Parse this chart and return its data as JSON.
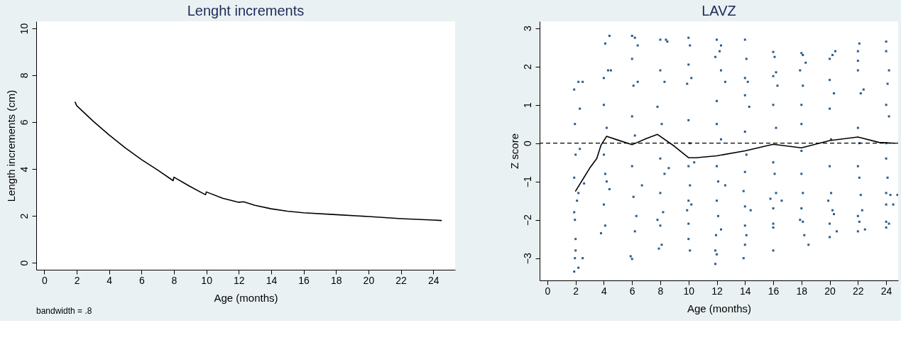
{
  "chart_data": [
    {
      "type": "line",
      "title": "Lenght increments",
      "xlabel": "Age  (months)",
      "ylabel": "Length increments (cm)",
      "xlim": [
        -0.5,
        25.35
      ],
      "ylim": [
        -0.3,
        10.3
      ],
      "xticks": [
        0,
        2,
        4,
        6,
        8,
        10,
        12,
        14,
        16,
        18,
        20,
        22,
        24
      ],
      "yticks": [
        0,
        2,
        4,
        6,
        8,
        10
      ],
      "annotations": [
        "bandwidth = .8"
      ],
      "series": [
        {
          "color": "#000000",
          "x": [
            1.9,
            2,
            3,
            4,
            5,
            6,
            7,
            7.95,
            8,
            9,
            9.95,
            10,
            11,
            12,
            12.3,
            13,
            14,
            15,
            16,
            18,
            20,
            22,
            24,
            24.5
          ],
          "values": [
            6.85,
            6.7,
            6.05,
            5.45,
            4.9,
            4.4,
            3.95,
            3.5,
            3.65,
            3.25,
            2.9,
            3.02,
            2.75,
            2.58,
            2.6,
            2.45,
            2.3,
            2.2,
            2.13,
            2.05,
            1.97,
            1.88,
            1.82,
            1.8
          ]
        }
      ]
    },
    {
      "type": "scatter",
      "title": "LAVZ",
      "xlabel": "Age (months)",
      "ylabel": "Z score",
      "xlim": [
        -0.55,
        24.85
      ],
      "ylim": [
        -3.58,
        3.18
      ],
      "xticks": [
        0,
        2,
        4,
        6,
        8,
        10,
        12,
        14,
        16,
        18,
        20,
        22,
        24
      ],
      "yticks": [
        -3,
        -2,
        -1,
        0,
        1,
        2,
        3
      ],
      "ref_lines": [
        {
          "axis": "y",
          "value": 0,
          "color": "#000000",
          "line_style": "dashed"
        }
      ],
      "series": [
        {
          "color": "#2b5d8c",
          "x": [
            1.9,
            2.2,
            2.5,
            1.95,
            2.3,
            2.0,
            1.9,
            2.1,
            1.95,
            2.0,
            2.2,
            1.95,
            1.9,
            2.2,
            2.5,
            2.6,
            2.3,
            1.9,
            2.0,
            4.1,
            4.4,
            4.0,
            4.3,
            4.0,
            4.2,
            4.0,
            4.1,
            4.4,
            4.0,
            4.1,
            3.8,
            4.2,
            4.5,
            6.0,
            6.2,
            6.4,
            6.0,
            6.1,
            6.4,
            6.0,
            6.2,
            6.0,
            6.1,
            6.3,
            6.2,
            5.9,
            6.0,
            6.7,
            8.0,
            8.4,
            8.5,
            8.0,
            8.3,
            7.8,
            8.1,
            8.0,
            8.3,
            8.0,
            8.2,
            7.8,
            8.0,
            8.1,
            7.9,
            8.6,
            10.0,
            10.1,
            10.0,
            10.2,
            9.9,
            10.0,
            10.1,
            10.0,
            10.1,
            10.0,
            10.2,
            9.9,
            10.0,
            10.0,
            10.1,
            10.4,
            12.0,
            12.3,
            12.2,
            11.9,
            12.3,
            12.6,
            12.0,
            12.0,
            12.3,
            12.0,
            12.1,
            12.0,
            12.1,
            12.3,
            11.95,
            11.9,
            12.0,
            11.9,
            12.6,
            14.0,
            14.1,
            14.0,
            14.2,
            14.0,
            14.3,
            14.0,
            14.1,
            14.0,
            13.9,
            14.0,
            14.4,
            14.0,
            14.1,
            14.0,
            13.9,
            16.0,
            16.1,
            16.0,
            16.2,
            16.3,
            16.0,
            16.2,
            16.0,
            16.1,
            16.2,
            15.8,
            16.0,
            16.0,
            16.0,
            16.0,
            16.6,
            18.0,
            18.1,
            18.3,
            17.9,
            18.1,
            18.0,
            18.0,
            18.0,
            18.0,
            18.1,
            18.0,
            17.9,
            18.1,
            18.2,
            18.5,
            20.0,
            20.4,
            20.2,
            20.0,
            20.3,
            20.0,
            20.1,
            20.0,
            20.1,
            19.9,
            20.2,
            20.3,
            20.0,
            20.0,
            20.5,
            22.0,
            22.0,
            22.1,
            22.0,
            22.2,
            22.4,
            22.0,
            22.1,
            22.0,
            22.1,
            22.2,
            22.3,
            22.0,
            22.1,
            22.0,
            22.5,
            24.0,
            24.0,
            24.2,
            24.1,
            24.0,
            24.2,
            24.0,
            24.0,
            24.1,
            24.0,
            24.3,
            24.0,
            24.5,
            24.0,
            24.0,
            24.2,
            24.8
          ],
          "values": [
            1.4,
            1.6,
            1.6,
            0.5,
            0.9,
            -0.3,
            -0.9,
            -1.5,
            -2.0,
            -2.5,
            -1.3,
            -3.0,
            -3.35,
            -3.25,
            -3.0,
            -1.05,
            -0.15,
            -1.8,
            -2.8,
            2.6,
            2.8,
            1.7,
            1.9,
            1.0,
            0.4,
            -0.3,
            -0.8,
            -1.2,
            -1.6,
            -2.15,
            -2.35,
            -1.0,
            1.9,
            2.8,
            2.75,
            2.55,
            2.2,
            1.5,
            1.6,
            0.7,
            0.2,
            -0.6,
            -1.4,
            -1.9,
            -2.3,
            -2.95,
            -3.02,
            -1.1,
            2.7,
            2.7,
            2.65,
            1.9,
            1.6,
            0.95,
            0.5,
            -0.4,
            -0.8,
            -1.3,
            -1.8,
            -2.0,
            -2.15,
            -2.65,
            -2.75,
            -0.65,
            2.75,
            2.55,
            2.05,
            1.7,
            1.55,
            0.6,
            0.0,
            -0.6,
            -1.1,
            -1.5,
            -1.6,
            -1.75,
            -2.1,
            -2.5,
            -2.8,
            -0.5,
            2.7,
            2.55,
            2.4,
            2.25,
            1.9,
            1.6,
            1.1,
            0.5,
            0.1,
            -0.6,
            -1.0,
            -1.5,
            -1.9,
            -2.25,
            -2.4,
            -2.8,
            -2.9,
            -3.15,
            -1.1,
            2.7,
            2.2,
            1.7,
            1.6,
            1.25,
            0.95,
            0.3,
            -0.3,
            -0.75,
            -1.25,
            -1.65,
            -1.75,
            -2.15,
            -2.4,
            -2.65,
            -3.0,
            2.38,
            2.25,
            1.75,
            1.85,
            1.5,
            1.0,
            0.4,
            -0.5,
            -0.8,
            -1.3,
            -1.45,
            -1.7,
            -2.1,
            -2.2,
            -2.8,
            -1.5,
            2.35,
            2.3,
            2.1,
            1.9,
            1.5,
            1.0,
            0.5,
            -0.2,
            -0.8,
            -1.3,
            -1.7,
            -2.0,
            -2.05,
            -2.4,
            -2.65,
            2.2,
            2.4,
            2.3,
            1.65,
            1.3,
            0.9,
            0.1,
            -0.6,
            -1.3,
            -1.5,
            -1.75,
            -1.85,
            -2.1,
            -2.45,
            -2.3,
            2.4,
            2.15,
            2.6,
            1.9,
            1.3,
            1.4,
            0.4,
            0.0,
            -0.6,
            -0.9,
            -1.35,
            -1.75,
            -1.9,
            -2.05,
            -2.3,
            -2.25,
            2.65,
            2.4,
            1.9,
            1.55,
            1.0,
            0.7,
            0.0,
            -0.4,
            -0.9,
            -1.3,
            -1.35,
            -1.6,
            -1.6,
            -2.05,
            -2.2,
            -2.1,
            -1.35
          ]
        },
        {
          "type": "line",
          "color": "#000000",
          "x": [
            2,
            2.5,
            3,
            3.5,
            3.8,
            4.2,
            5,
            6,
            7,
            7.8,
            9,
            10,
            10.5,
            12,
            14,
            16,
            18,
            20,
            22,
            23.5,
            24.6
          ],
          "values": [
            -1.25,
            -0.95,
            -0.65,
            -0.4,
            -0.05,
            0.18,
            0.08,
            -0.04,
            0.12,
            0.23,
            -0.08,
            -0.38,
            -0.38,
            -0.33,
            -0.2,
            -0.03,
            -0.12,
            0.07,
            0.16,
            0.02,
            0.0
          ]
        }
      ]
    }
  ]
}
